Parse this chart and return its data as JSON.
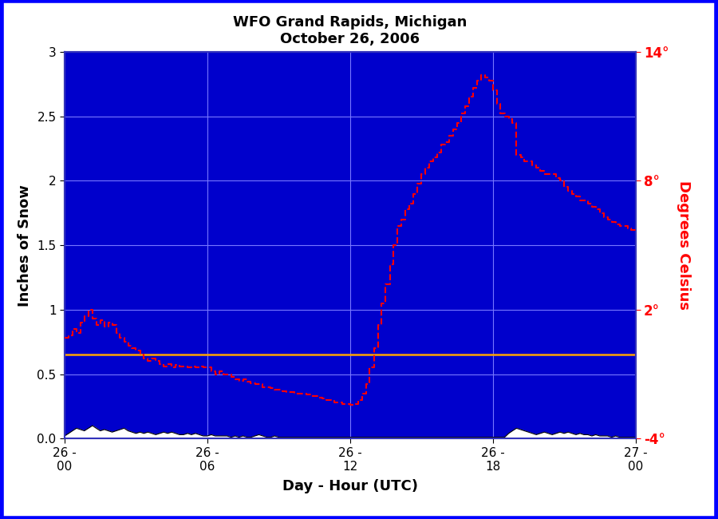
{
  "title_line1": "WFO Grand Rapids, Michigan",
  "title_line2": "October 26, 2006",
  "xlabel": "Day - Hour (UTC)",
  "ylabel_left": "Inches of Snow",
  "ylabel_right": "Degrees Celsius",
  "bg_color": "#0000CC",
  "outer_bg_color": "#FFFFFF",
  "orange_line_y": 0.65,
  "orange_line_color": "#FFA500",
  "grid_color": "#7777FF",
  "temp_color": "#FF0000",
  "snow_fill_color": "#FFFFFF",
  "snow_line_color": "#000000",
  "left_ylim": [
    0.0,
    3.0
  ],
  "right_ylim": [
    -4.0,
    14.0
  ],
  "xlim": [
    0.0,
    24.0
  ],
  "xtick_positions": [
    0,
    6,
    12,
    18,
    24
  ],
  "xtick_labels": [
    "26 -\n00",
    "26 -\n06",
    "26 -\n12",
    "26 -\n18",
    "27 -\n00"
  ],
  "ytick_left": [
    0.0,
    0.5,
    1.0,
    1.5,
    2.0,
    2.5,
    3.0
  ],
  "ytick_right_vals": [
    -4,
    2,
    8,
    14
  ],
  "ytick_right_labels": [
    "-4°",
    "2°",
    "8°",
    "14°"
  ],
  "temp_x": [
    0.0,
    0.17,
    0.33,
    0.5,
    0.67,
    0.83,
    1.0,
    1.17,
    1.33,
    1.5,
    1.67,
    1.83,
    2.0,
    2.17,
    2.33,
    2.5,
    2.67,
    2.83,
    3.0,
    3.17,
    3.33,
    3.5,
    3.67,
    3.83,
    4.0,
    4.17,
    4.33,
    4.5,
    4.67,
    4.83,
    5.0,
    5.17,
    5.33,
    5.5,
    5.67,
    5.83,
    6.0,
    6.17,
    6.33,
    6.5,
    6.67,
    6.83,
    7.0,
    7.17,
    7.33,
    7.5,
    7.67,
    7.83,
    8.0,
    8.17,
    8.33,
    8.5,
    8.67,
    8.83,
    9.0,
    9.17,
    9.33,
    9.5,
    9.67,
    9.83,
    10.0,
    10.17,
    10.33,
    10.5,
    10.67,
    10.83,
    11.0,
    11.17,
    11.33,
    11.5,
    11.67,
    11.83,
    12.0,
    12.17,
    12.33,
    12.5,
    12.67,
    12.83,
    13.0,
    13.17,
    13.33,
    13.5,
    13.67,
    13.83,
    14.0,
    14.17,
    14.33,
    14.5,
    14.67,
    14.83,
    15.0,
    15.17,
    15.33,
    15.5,
    15.67,
    15.83,
    16.0,
    16.17,
    16.33,
    16.5,
    16.67,
    16.83,
    17.0,
    17.17,
    17.33,
    17.5,
    17.67,
    17.83,
    18.0,
    18.17,
    18.33,
    18.5,
    18.67,
    18.83,
    19.0,
    19.17,
    19.33,
    19.5,
    19.67,
    19.83,
    20.0,
    20.17,
    20.33,
    20.5,
    20.67,
    20.83,
    21.0,
    21.17,
    21.33,
    21.5,
    21.67,
    21.83,
    22.0,
    22.17,
    22.33,
    22.5,
    22.67,
    22.83,
    23.0,
    23.17,
    23.33,
    23.5,
    23.67,
    23.83,
    24.0
  ],
  "temp_y_snow_scale": [
    0.78,
    0.8,
    0.85,
    0.82,
    0.9,
    0.95,
    1.0,
    0.93,
    0.88,
    0.92,
    0.87,
    0.9,
    0.88,
    0.82,
    0.78,
    0.75,
    0.72,
    0.7,
    0.68,
    0.65,
    0.62,
    0.6,
    0.62,
    0.6,
    0.58,
    0.56,
    0.58,
    0.55,
    0.57,
    0.56,
    0.56,
    0.55,
    0.56,
    0.55,
    0.56,
    0.55,
    0.55,
    0.52,
    0.5,
    0.52,
    0.5,
    0.5,
    0.48,
    0.46,
    0.45,
    0.46,
    0.44,
    0.43,
    0.42,
    0.42,
    0.4,
    0.4,
    0.39,
    0.38,
    0.38,
    0.37,
    0.36,
    0.36,
    0.35,
    0.35,
    0.35,
    0.34,
    0.33,
    0.33,
    0.32,
    0.31,
    0.3,
    0.3,
    0.28,
    0.28,
    0.27,
    0.27,
    0.26,
    0.27,
    0.3,
    0.35,
    0.42,
    0.55,
    0.7,
    0.88,
    1.05,
    1.2,
    1.35,
    1.5,
    1.65,
    1.7,
    1.78,
    1.82,
    1.9,
    1.98,
    2.05,
    2.1,
    2.15,
    2.18,
    2.22,
    2.28,
    2.3,
    2.35,
    2.4,
    2.45,
    2.52,
    2.58,
    2.65,
    2.72,
    2.78,
    2.82,
    2.8,
    2.78,
    2.7,
    2.6,
    2.52,
    2.5,
    2.48,
    2.45,
    2.2,
    2.18,
    2.15,
    2.15,
    2.12,
    2.1,
    2.08,
    2.05,
    2.05,
    2.05,
    2.02,
    2.0,
    1.95,
    1.92,
    1.9,
    1.88,
    1.85,
    1.85,
    1.82,
    1.8,
    1.78,
    1.75,
    1.72,
    1.7,
    1.68,
    1.66,
    1.65,
    1.65,
    1.63,
    1.62,
    1.62
  ],
  "snow_x": [
    0.0,
    0.17,
    0.33,
    0.5,
    0.67,
    0.83,
    1.0,
    1.17,
    1.33,
    1.5,
    1.67,
    1.83,
    2.0,
    2.17,
    2.33,
    2.5,
    2.67,
    2.83,
    3.0,
    3.17,
    3.33,
    3.5,
    3.67,
    3.83,
    4.0,
    4.17,
    4.33,
    4.5,
    4.67,
    4.83,
    5.0,
    5.17,
    5.33,
    5.5,
    5.67,
    5.83,
    6.0,
    6.17,
    6.33,
    6.5,
    6.67,
    6.83,
    7.0,
    7.17,
    7.33,
    7.5,
    7.67,
    7.83,
    8.0,
    8.17,
    8.33,
    8.5,
    8.67,
    8.83,
    9.0,
    9.17,
    9.33,
    9.5,
    9.67,
    9.83,
    10.0,
    10.17,
    10.33,
    10.5,
    10.67,
    10.83,
    11.0,
    11.17,
    11.33,
    11.5,
    11.67,
    11.83,
    12.0,
    12.17,
    12.33,
    12.5,
    12.67,
    12.83,
    13.0,
    13.17,
    13.33,
    13.5,
    13.67,
    13.83,
    14.0,
    14.17,
    14.33,
    14.5,
    14.67,
    14.83,
    15.0,
    15.17,
    15.33,
    15.5,
    15.67,
    15.83,
    16.0,
    16.17,
    16.33,
    16.5,
    16.67,
    16.83,
    17.0,
    17.17,
    17.33,
    17.5,
    17.67,
    17.83,
    18.0,
    18.17,
    18.33,
    18.5,
    18.67,
    18.83,
    19.0,
    19.17,
    19.33,
    19.5,
    19.67,
    19.83,
    20.0,
    20.17,
    20.33,
    20.5,
    20.67,
    20.83,
    21.0,
    21.17,
    21.33,
    21.5,
    21.67,
    21.83,
    22.0,
    22.17,
    22.33,
    22.5,
    22.67,
    22.83,
    23.0,
    23.17,
    23.33,
    23.5,
    23.67,
    23.83,
    24.0
  ],
  "snow_y": [
    0.02,
    0.04,
    0.06,
    0.08,
    0.07,
    0.06,
    0.08,
    0.1,
    0.08,
    0.06,
    0.07,
    0.06,
    0.05,
    0.06,
    0.07,
    0.08,
    0.06,
    0.05,
    0.04,
    0.05,
    0.04,
    0.05,
    0.04,
    0.03,
    0.04,
    0.05,
    0.04,
    0.05,
    0.04,
    0.03,
    0.03,
    0.04,
    0.03,
    0.04,
    0.03,
    0.02,
    0.02,
    0.03,
    0.02,
    0.02,
    0.02,
    0.02,
    0.01,
    0.02,
    0.01,
    0.02,
    0.01,
    0.01,
    0.02,
    0.03,
    0.02,
    0.01,
    0.01,
    0.02,
    0.01,
    0.01,
    0.01,
    0.01,
    0.01,
    0.01,
    0.01,
    0.01,
    0.01,
    0.01,
    0.01,
    0.01,
    0.01,
    0.01,
    0.01,
    0.01,
    0.01,
    0.01,
    0.01,
    0.01,
    0.01,
    0.01,
    0.01,
    0.01,
    0.01,
    0.01,
    0.01,
    0.01,
    0.01,
    0.01,
    0.01,
    0.01,
    0.01,
    0.01,
    0.01,
    0.01,
    0.01,
    0.01,
    0.01,
    0.01,
    0.01,
    0.01,
    0.01,
    0.01,
    0.01,
    0.01,
    0.01,
    0.01,
    0.01,
    0.01,
    0.01,
    0.01,
    0.01,
    0.01,
    0.01,
    0.01,
    0.01,
    0.01,
    0.04,
    0.06,
    0.08,
    0.07,
    0.06,
    0.05,
    0.04,
    0.03,
    0.04,
    0.05,
    0.04,
    0.03,
    0.04,
    0.05,
    0.04,
    0.05,
    0.04,
    0.03,
    0.04,
    0.03,
    0.03,
    0.02,
    0.03,
    0.02,
    0.02,
    0.02,
    0.01,
    0.02,
    0.01,
    0.01,
    0.01,
    0.01,
    0.01
  ]
}
